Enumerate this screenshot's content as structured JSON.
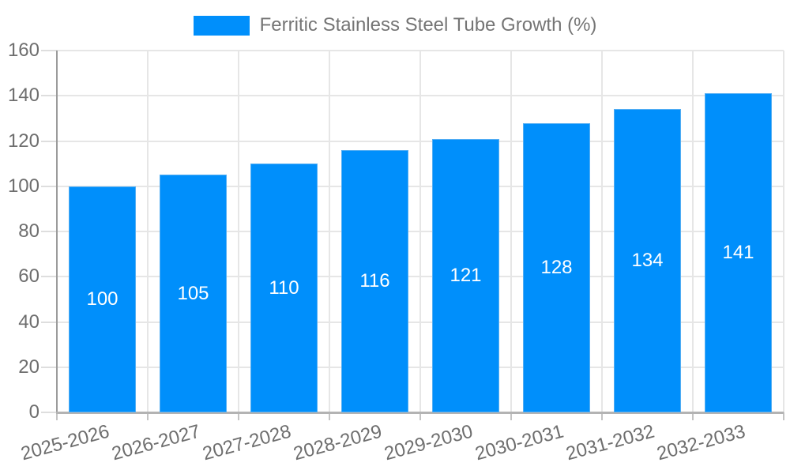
{
  "chart_data": {
    "type": "bar",
    "title": "",
    "legend": "Ferritic Stainless Steel Tube Growth (%)",
    "legend_position": "top",
    "categories": [
      "2025-2026",
      "2026-2027",
      "2027-2028",
      "2028-2029",
      "2029-2030",
      "2030-2031",
      "2031-2032",
      "2032-2033"
    ],
    "series": [
      {
        "name": "Ferritic Stainless Steel Tube Growth (%)",
        "values": [
          100,
          105,
          110,
          116,
          121,
          128,
          134,
          141
        ]
      }
    ],
    "value_labels_shown": true,
    "xlabel": "",
    "ylabel": "",
    "ylim": [
      0,
      160
    ],
    "yticks": [
      0,
      20,
      40,
      60,
      80,
      100,
      120,
      140,
      160
    ],
    "grid": true,
    "x_label_rotation_deg": -15,
    "colors": {
      "bar": "#008FFB",
      "bar_edge": "#54aef3",
      "value_label": "#ffffff",
      "axis_label": "#6e6e6e",
      "legend_text": "#757575",
      "gridline": "#e6e6e6",
      "y_axis_line": "#9b9b9b",
      "x_axis_line": "#b3b3b3"
    }
  }
}
